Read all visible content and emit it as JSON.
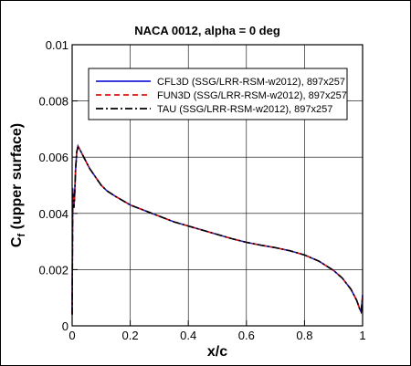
{
  "chart_data": {
    "type": "line",
    "title": "NACA 0012, alpha = 0 deg",
    "xlabel": "x/c",
    "ylabel_main": "C",
    "ylabel_sub": "f",
    "ylabel_rest": " (upper surface)",
    "xlim": [
      0,
      1
    ],
    "ylim": [
      0,
      0.01
    ],
    "x_ticks": [
      0,
      0.2,
      0.4,
      0.6,
      0.8,
      1
    ],
    "x_tick_labels": [
      "0",
      "0.2",
      "0.4",
      "0.6",
      "0.8",
      "1"
    ],
    "y_ticks": [
      0,
      0.002,
      0.004,
      0.006,
      0.008,
      0.01
    ],
    "y_tick_labels": [
      "0",
      "0.002",
      "0.004",
      "0.006",
      "0.008",
      "0.01"
    ],
    "grid": true,
    "legend_position": "top-right",
    "series": [
      {
        "name": "CFL3D (SSG/LRR-RSM-w2012), 897x257",
        "color": "#1f1fd6",
        "dash": "solid",
        "x": [
          0.0,
          0.002,
          0.004,
          0.006,
          0.008,
          0.012,
          0.016,
          0.02,
          0.025,
          0.03,
          0.04,
          0.05,
          0.06,
          0.08,
          0.1,
          0.12,
          0.15,
          0.2,
          0.25,
          0.3,
          0.35,
          0.4,
          0.45,
          0.5,
          0.55,
          0.6,
          0.65,
          0.7,
          0.75,
          0.8,
          0.85,
          0.9,
          0.93,
          0.96,
          0.98,
          0.99,
          0.995,
          1.0
        ],
        "y": [
          0.0004,
          0.0049,
          0.0046,
          0.0043,
          0.0045,
          0.0056,
          0.0062,
          0.0064,
          0.0063,
          0.0062,
          0.006,
          0.0058,
          0.0056,
          0.0053,
          0.005,
          0.0048,
          0.0046,
          0.0043,
          0.0041,
          0.0039,
          0.0037,
          0.00355,
          0.0034,
          0.00325,
          0.0031,
          0.00297,
          0.00287,
          0.00278,
          0.00267,
          0.00252,
          0.0023,
          0.00197,
          0.0017,
          0.0013,
          0.0009,
          0.0006,
          0.0005,
          0.0011
        ]
      },
      {
        "name": "FUN3D (SSG/LRR-RSM-w2012), 897x257",
        "color": "#e01010",
        "dash": "dashed",
        "x": [
          0.0,
          0.002,
          0.004,
          0.006,
          0.008,
          0.012,
          0.016,
          0.02,
          0.025,
          0.03,
          0.04,
          0.05,
          0.06,
          0.08,
          0.1,
          0.12,
          0.15,
          0.2,
          0.25,
          0.3,
          0.35,
          0.4,
          0.45,
          0.5,
          0.55,
          0.6,
          0.65,
          0.7,
          0.75,
          0.8,
          0.85,
          0.9,
          0.93,
          0.96,
          0.98,
          0.99,
          0.995,
          1.0
        ],
        "y": [
          0.0004,
          0.0048,
          0.0045,
          0.0042,
          0.0045,
          0.0056,
          0.0062,
          0.00638,
          0.0063,
          0.0062,
          0.006,
          0.0058,
          0.0056,
          0.0053,
          0.005,
          0.0048,
          0.0046,
          0.0043,
          0.0041,
          0.0039,
          0.0037,
          0.00355,
          0.0034,
          0.00325,
          0.0031,
          0.00297,
          0.00287,
          0.00278,
          0.00267,
          0.00252,
          0.0023,
          0.00197,
          0.0017,
          0.0013,
          0.0009,
          0.0006,
          0.0005,
          0.001
        ]
      },
      {
        "name": "TAU (SSG/LRR-RSM-w2012), 897x257",
        "color": "#000000",
        "dash": "dashdot",
        "x": [
          0.0,
          0.002,
          0.004,
          0.006,
          0.008,
          0.012,
          0.016,
          0.02,
          0.025,
          0.03,
          0.04,
          0.05,
          0.06,
          0.08,
          0.1,
          0.12,
          0.15,
          0.2,
          0.25,
          0.3,
          0.35,
          0.4,
          0.45,
          0.5,
          0.55,
          0.6,
          0.65,
          0.7,
          0.75,
          0.8,
          0.85,
          0.9,
          0.93,
          0.96,
          0.98,
          0.99,
          0.995,
          1.0
        ],
        "y": [
          0.0004,
          0.0047,
          0.0044,
          0.0042,
          0.0045,
          0.0056,
          0.0062,
          0.00635,
          0.0063,
          0.0062,
          0.006,
          0.0058,
          0.0056,
          0.0053,
          0.005,
          0.0048,
          0.0046,
          0.0043,
          0.0041,
          0.0039,
          0.0037,
          0.00355,
          0.0034,
          0.00325,
          0.0031,
          0.00297,
          0.00287,
          0.00278,
          0.00267,
          0.00252,
          0.0023,
          0.00197,
          0.0017,
          0.0013,
          0.0009,
          0.0006,
          0.0005,
          0.001
        ]
      }
    ]
  }
}
